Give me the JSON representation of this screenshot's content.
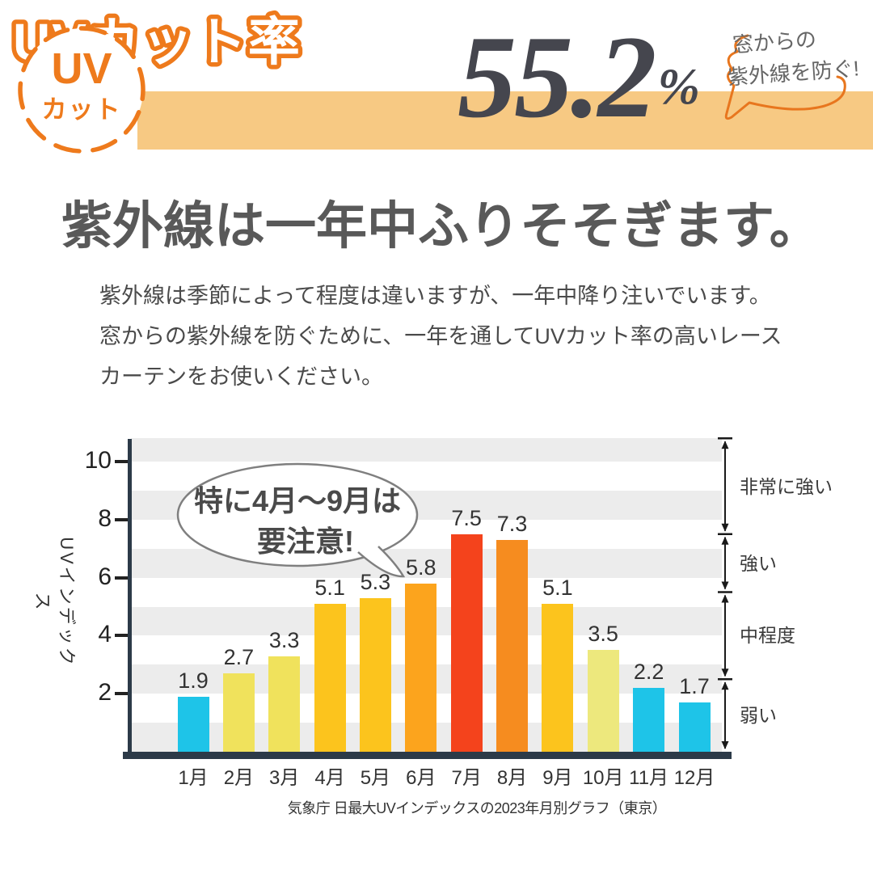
{
  "badge": {
    "line1": "UV",
    "line2": "カット"
  },
  "banner": {
    "label": "UVカット率",
    "value": "55.2",
    "unit": "%"
  },
  "window_bubble": {
    "line1": "窓からの",
    "line2": "紫外線を防ぐ!"
  },
  "heading": "紫外線は一年中ふりそそぎます。",
  "paragraph": [
    "紫外線は季節によって程度は違いますが、一年中降り注いでいます。",
    "窓からの紫外線を防ぐために、一年を通してUVカット率の高いレース",
    "カーテンをお使いください。"
  ],
  "colors": {
    "orange": "#EE7A1C",
    "banner_bg": "#F7C983",
    "value_text": "#45464E",
    "heading_text": "#595959",
    "body_text": "#4A4A4A",
    "stripe_gray": "#ECECEC",
    "axis_navy": "#2C3A48",
    "bubble_outline": "#7F7F7F"
  },
  "chart_data": {
    "type": "bar",
    "title": "",
    "categories": [
      "1月",
      "2月",
      "3月",
      "4月",
      "5月",
      "6月",
      "7月",
      "8月",
      "9月",
      "10月",
      "11月",
      "12月"
    ],
    "values": [
      1.9,
      2.7,
      3.3,
      5.1,
      5.3,
      5.8,
      7.5,
      7.3,
      5.1,
      3.5,
      2.2,
      1.7
    ],
    "bar_colors": [
      "#1EC4E8",
      "#F0E25C",
      "#F0E25C",
      "#FCC41D",
      "#FCC41D",
      "#FCA41D",
      "#F4431C",
      "#F68C1F",
      "#FCC41D",
      "#EDE87D",
      "#1EC4E8",
      "#1EC4E8"
    ],
    "xlabel": "",
    "ylabel": "UVインデックス",
    "yticks": [
      2,
      4,
      6,
      8,
      10
    ],
    "ylim": [
      0,
      10.8
    ],
    "grid": "horizontal-stripes",
    "legend": "none",
    "annotation": {
      "line1": "特に4月〜9月は",
      "line2": "要注意!"
    },
    "bands": [
      {
        "label": "非常に強い",
        "from": 7.5,
        "to": 10.8
      },
      {
        "label": "強い",
        "from": 5.5,
        "to": 7.5
      },
      {
        "label": "中程度",
        "from": 2.5,
        "to": 5.5
      },
      {
        "label": "弱い",
        "from": 0,
        "to": 2.5
      }
    ],
    "caption": "気象庁 日最大UVインデックスの2023年月別グラフ（東京）"
  }
}
